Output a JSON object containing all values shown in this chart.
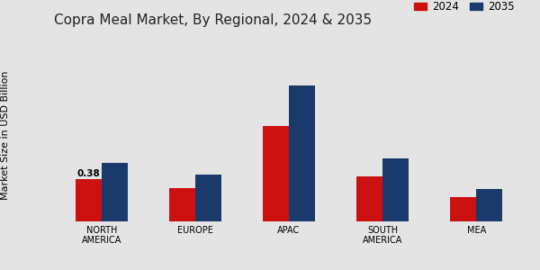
{
  "title": "Copra Meal Market, By Regional, 2024 & 2035",
  "ylabel": "Market Size in USD Billion",
  "categories": [
    "NORTH\nAMERICA",
    "EUROPE",
    "APAC",
    "SOUTH\nAMERICA",
    "MEA"
  ],
  "values_2024": [
    0.38,
    0.3,
    0.85,
    0.4,
    0.22
  ],
  "values_2035": [
    0.52,
    0.42,
    1.22,
    0.56,
    0.29
  ],
  "color_2024": "#cc1111",
  "color_2035": "#1a3a6b",
  "annotation_value": "0.38",
  "annotation_bar_index": 0,
  "background_color": "#e4e4e4",
  "title_fontsize": 11,
  "axis_label_fontsize": 8,
  "tick_fontsize": 7,
  "legend_labels": [
    "2024",
    "2035"
  ],
  "bar_width": 0.28,
  "ylim": [
    0,
    1.45
  ]
}
